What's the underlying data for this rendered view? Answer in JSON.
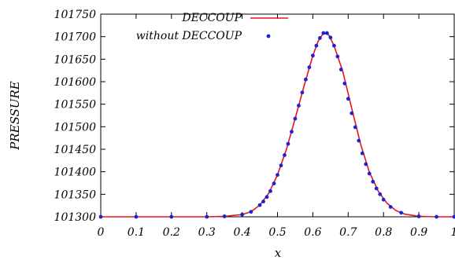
{
  "chart_data": {
    "type": "line",
    "xlabel": "x",
    "ylabel": "PRESSURE",
    "xlim": [
      0,
      1
    ],
    "ylim": [
      101300,
      101750
    ],
    "x_ticks": [
      0,
      0.1,
      0.2,
      0.3,
      0.4,
      0.5,
      0.6,
      0.7,
      0.8,
      0.9,
      1
    ],
    "x_tick_labels": [
      "0",
      "0.1",
      "0.2",
      "0.3",
      "0.4",
      "0.5",
      "0.6",
      "0.7",
      "0.8",
      "0.9",
      "1"
    ],
    "y_ticks": [
      101300,
      101350,
      101400,
      101450,
      101500,
      101550,
      101600,
      101650,
      101700,
      101750
    ],
    "y_tick_labels": [
      "101300",
      "101350",
      "101400",
      "101450",
      "101500",
      "101550",
      "101600",
      "101650",
      "101700",
      "101750"
    ],
    "grid": false,
    "legend_position": "top-left",
    "series": [
      {
        "name": "DECCOUP",
        "style": "line",
        "color": "#e8141c",
        "x": [
          0,
          0.3,
          0.35,
          0.4,
          0.425,
          0.45,
          0.475,
          0.5,
          0.525,
          0.55,
          0.575,
          0.6,
          0.615,
          0.63,
          0.645,
          0.66,
          0.685,
          0.71,
          0.735,
          0.76,
          0.785,
          0.81,
          0.835,
          0.86,
          0.9,
          0.95,
          1
        ],
        "y": [
          101300,
          101300,
          101301,
          101305,
          101311,
          101326,
          101352,
          101393,
          101449,
          101518,
          101590,
          101658,
          101690,
          101708,
          101704,
          101680,
          101622,
          101541,
          101462,
          101399,
          101357,
          101330,
          101314,
          101306,
          101301,
          101300,
          101300
        ]
      },
      {
        "name": "without DECCOUP",
        "style": "markers",
        "color": "#1a24d6",
        "x": [
          0,
          0.1,
          0.2,
          0.3,
          0.35,
          0.4,
          0.425,
          0.45,
          0.46,
          0.47,
          0.48,
          0.49,
          0.5,
          0.51,
          0.52,
          0.53,
          0.54,
          0.55,
          0.56,
          0.57,
          0.58,
          0.59,
          0.6,
          0.61,
          0.62,
          0.63,
          0.64,
          0.65,
          0.66,
          0.67,
          0.68,
          0.69,
          0.7,
          0.71,
          0.72,
          0.73,
          0.74,
          0.75,
          0.76,
          0.77,
          0.78,
          0.79,
          0.8,
          0.82,
          0.85,
          0.9,
          0.95,
          1
        ],
        "y": [
          101300,
          101300,
          101300,
          101300,
          101301,
          101305,
          101311,
          101326,
          101334,
          101344,
          101357,
          101374,
          101393,
          101414,
          101437,
          101462,
          101489,
          101518,
          101547,
          101576,
          101605,
          101632,
          101658,
          101680,
          101697,
          101708,
          101708,
          101698,
          101680,
          101656,
          101627,
          101596,
          101562,
          101530,
          101499,
          101469,
          101441,
          101417,
          101396,
          101378,
          101363,
          101350,
          101338,
          101322,
          101309,
          101301,
          101300,
          101300
        ]
      }
    ]
  }
}
